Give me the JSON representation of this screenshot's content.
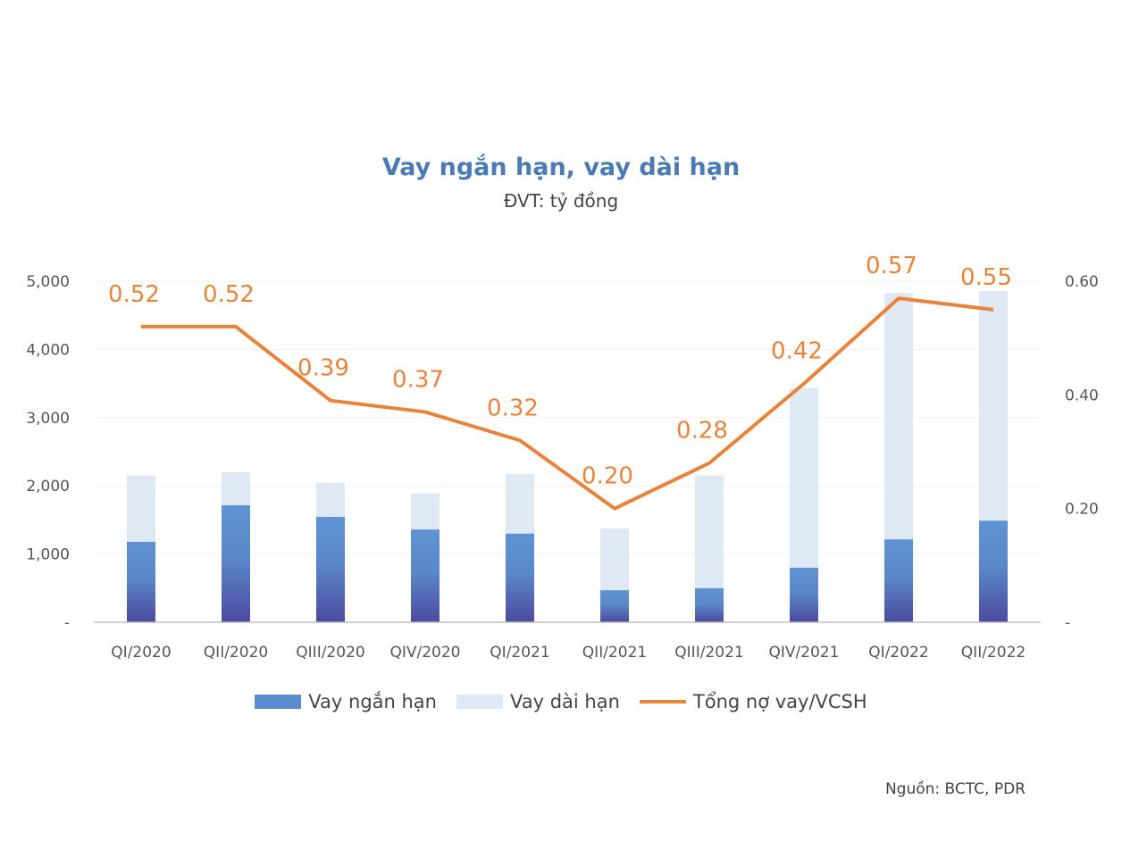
{
  "chart_data": {
    "type": "bar+line",
    "title": "Vay ngắn hạn, vay dài hạn",
    "subtitle": "ĐVT: tỷ đồng",
    "source": "Nguồn: BCTC, PDR",
    "categories": [
      "QI/2020",
      "QII/2020",
      "QIII/2020",
      "QIV/2020",
      "QI/2021",
      "QII/2021",
      "QIII/2021",
      "QIV/2021",
      "QI/2022",
      "QII/2022"
    ],
    "series": [
      {
        "name": "Vay ngắn hạn",
        "type": "stacked-bar",
        "axis": "left",
        "color": "#5a8dcf",
        "values": [
          1180,
          1715,
          1545,
          1360,
          1300,
          470,
          500,
          800,
          1215,
          1490
        ]
      },
      {
        "name": "Vay dài hạn",
        "type": "stacked-bar",
        "axis": "left",
        "color": "#dfe9f3",
        "values": [
          970,
          485,
          500,
          525,
          875,
          905,
          1650,
          2630,
          3615,
          3365
        ]
      },
      {
        "name": "Tổng nợ vay/VCSH",
        "type": "line",
        "axis": "right",
        "color": "#e8833a",
        "values": [
          0.52,
          0.52,
          0.39,
          0.37,
          0.32,
          0.2,
          0.28,
          0.42,
          0.57,
          0.55
        ],
        "labels": [
          "0.52",
          "0.52",
          "0.39",
          "0.37",
          "0.32",
          "0.20",
          "0.28",
          "0.42",
          "0.57",
          "0.55"
        ]
      }
    ],
    "y_left": {
      "ylim": [
        0,
        5000
      ],
      "ticks": [
        "-",
        "1,000",
        "2,000",
        "3,000",
        "4,000",
        "5,000"
      ]
    },
    "y_right": {
      "ylim": [
        0,
        0.6
      ],
      "ticks": [
        "-",
        "0.20",
        "0.40",
        "0.60"
      ]
    },
    "grid": true,
    "legend": "bottom"
  }
}
